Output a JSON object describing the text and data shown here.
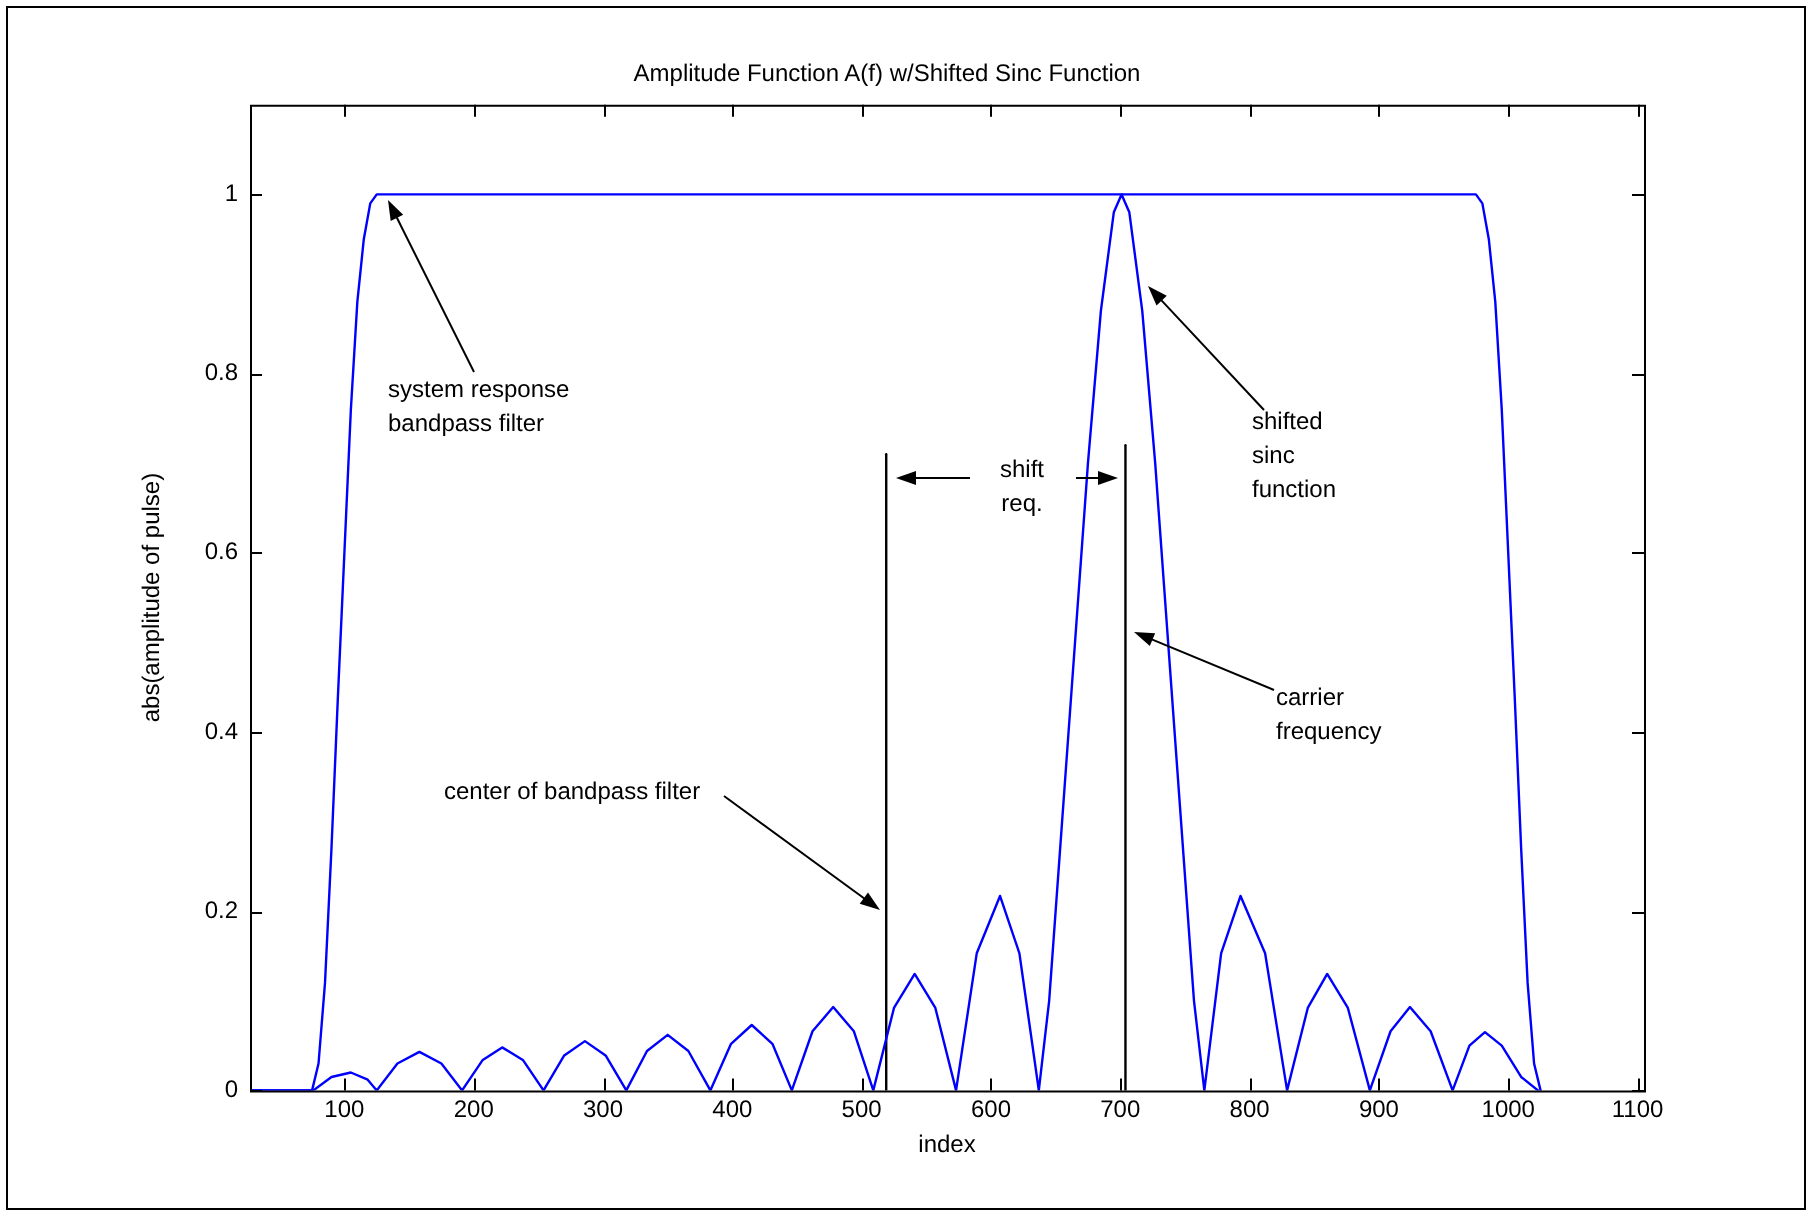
{
  "chart_data": {
    "type": "line",
    "title": "Amplitude Function A(f) w/Shifted Sinc Function",
    "xlabel": "index",
    "ylabel": "abs(amplitude of pulse)",
    "xlim": [
      27,
      1105
    ],
    "xticks": [
      100,
      200,
      300,
      400,
      500,
      600,
      700,
      800,
      900,
      1000,
      1100
    ],
    "ylim": [
      0,
      1.1
    ],
    "yticks": [
      0,
      0.2,
      0.4,
      0.6,
      0.8,
      1
    ],
    "grid": false,
    "legend": false,
    "marker": "none",
    "line_style": "solid",
    "series": [
      {
        "color": "#0000ff",
        "x": [
          27,
          75,
          80,
          85,
          90,
          95,
          100,
          105,
          110,
          115,
          120,
          125,
          130,
          975,
          980,
          985,
          990,
          995,
          1000,
          1005,
          1010,
          1015,
          1020,
          1025
        ],
        "values": [
          0,
          0,
          0.03,
          0.12,
          0.27,
          0.44,
          0.6,
          0.76,
          0.88,
          0.95,
          0.99,
          1,
          1,
          1,
          0.99,
          0.95,
          0.88,
          0.76,
          0.6,
          0.44,
          0.27,
          0.12,
          0.03,
          0
        ]
      },
      {
        "color": "#0000ff",
        "x": [
          27,
          76,
          90,
          105,
          118,
          125,
          141,
          158,
          175,
          191,
          207,
          222,
          238,
          254,
          270,
          286,
          302,
          318,
          334,
          350,
          366,
          383,
          399,
          415,
          431,
          446,
          462,
          478,
          494,
          509,
          525,
          541,
          557,
          573,
          589,
          607,
          622,
          637,
          645,
          655,
          665,
          675,
          685,
          695,
          701,
          707,
          717,
          727,
          737,
          747,
          757,
          765,
          778,
          793,
          812,
          829,
          845,
          860,
          876,
          893,
          909,
          924,
          940,
          957,
          970,
          982,
          995,
          1010,
          1023
        ],
        "values": [
          0,
          0,
          0.015,
          0.02,
          0.012,
          0,
          0.03,
          0.043,
          0.03,
          0,
          0.034,
          0.048,
          0.034,
          0,
          0.039,
          0.055,
          0.039,
          0,
          0.044,
          0.062,
          0.044,
          0,
          0.052,
          0.073,
          0.052,
          0,
          0.066,
          0.093,
          0.066,
          0,
          0.092,
          0.13,
          0.092,
          0,
          0.153,
          0.217,
          0.153,
          0,
          0.1,
          0.3,
          0.5,
          0.7,
          0.87,
          0.98,
          1,
          0.98,
          0.87,
          0.7,
          0.5,
          0.3,
          0.1,
          0,
          0.153,
          0.217,
          0.153,
          0,
          0.092,
          0.13,
          0.092,
          0,
          0.066,
          0.093,
          0.066,
          0,
          0.05,
          0.065,
          0.05,
          0.015,
          0
        ]
      },
      {
        "color": "#000000",
        "x": [
          519,
          519
        ],
        "values": [
          0,
          0.71
        ]
      },
      {
        "color": "#000000",
        "x": [
          704,
          704
        ],
        "values": [
          0,
          0.72
        ]
      }
    ],
    "annotations": [
      "system response bandpass filter",
      "shifted sinc function",
      "shift req.",
      "carrier frequency",
      "center of bandpass filter"
    ]
  }
}
